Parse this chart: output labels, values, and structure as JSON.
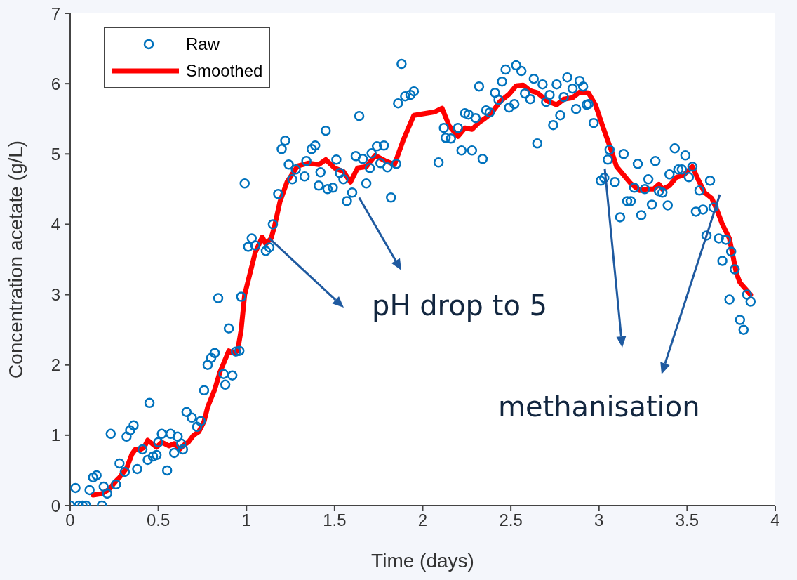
{
  "chart_data": {
    "type": "scatter",
    "xlabel": "Time (days)",
    "ylabel": "Concentration acetate (g/L)",
    "xlim": [
      0,
      4
    ],
    "xticks": [
      0,
      0.5,
      1,
      1.5,
      2,
      2.5,
      3,
      3.5,
      4
    ],
    "ylim": [
      0,
      7
    ],
    "yticks": [
      0,
      1,
      2,
      3,
      4,
      5,
      6,
      7
    ],
    "legend": "top left",
    "grid": false,
    "annotations": [
      {
        "text": "pH drop to 5",
        "x": 1.13,
        "y": 3.8
      },
      "methanisation"
    ],
    "series": [
      {
        "name": "Raw",
        "type": "scatter",
        "marker": "circle",
        "color": "#0072bd",
        "x": [
          0,
          0.03,
          0.05,
          0.07,
          0.09,
          0.11,
          0.13,
          0.15,
          0.18,
          0.19,
          0.21,
          0.23,
          0.26,
          0.28,
          0.31,
          0.32,
          0.34,
          0.36,
          0.38,
          0.41,
          0.44,
          0.45,
          0.47,
          0.49,
          0.5,
          0.52,
          0.55,
          0.57,
          0.59,
          0.61,
          0.63,
          0.64,
          0.66,
          0.69,
          0.72,
          0.74,
          0.76,
          0.78,
          0.8,
          0.82,
          0.84,
          0.87,
          0.88,
          0.9,
          0.92,
          0.94,
          0.96,
          0.97,
          0.99,
          1.01,
          1.03,
          1.05,
          1.11,
          1.13,
          1.15,
          1.18,
          1.2,
          1.22,
          1.24,
          1.26,
          1.28,
          1.33,
          1.34,
          1.37,
          1.39,
          1.41,
          1.42,
          1.45,
          1.46,
          1.49,
          1.51,
          1.53,
          1.55,
          1.57,
          1.6,
          1.62,
          1.64,
          1.66,
          1.68,
          1.7,
          1.71,
          1.74,
          1.76,
          1.78,
          1.8,
          1.82,
          1.85,
          1.86,
          1.88,
          1.9,
          1.93,
          1.95,
          2.09,
          2.12,
          2.13,
          2.16,
          2.2,
          2.22,
          2.24,
          2.26,
          2.28,
          2.3,
          2.32,
          2.34,
          2.36,
          2.38,
          2.41,
          2.43,
          2.45,
          2.47,
          2.49,
          2.52,
          2.53,
          2.56,
          2.58,
          2.61,
          2.63,
          2.65,
          2.68,
          2.7,
          2.72,
          2.74,
          2.76,
          2.78,
          2.8,
          2.82,
          2.85,
          2.87,
          2.89,
          2.91,
          2.93,
          2.94,
          2.97,
          3.01,
          3.03,
          3.05,
          3.06,
          3.09,
          3.12,
          3.14,
          3.16,
          3.18,
          3.2,
          3.22,
          3.24,
          3.26,
          3.28,
          3.3,
          3.32,
          3.34,
          3.36,
          3.39,
          3.4,
          3.43,
          3.45,
          3.47,
          3.49,
          3.51,
          3.53,
          3.55,
          3.57,
          3.59,
          3.61,
          3.63,
          3.65,
          3.68,
          3.7,
          3.72,
          3.74,
          3.75,
          3.77,
          3.8,
          3.82,
          3.84,
          3.86
        ],
        "values": [
          0,
          0.25,
          0,
          0,
          0,
          0.22,
          0.4,
          0.43,
          0,
          0.27,
          0.17,
          1.02,
          0.3,
          0.6,
          0.48,
          0.98,
          1.07,
          1.14,
          0.52,
          0.8,
          0.65,
          1.46,
          0.7,
          0.72,
          0.9,
          1.02,
          0.5,
          1.02,
          0.75,
          0.98,
          0.88,
          0.8,
          1.33,
          1.25,
          1.12,
          1.2,
          1.64,
          2.0,
          2.1,
          2.17,
          2.95,
          1.87,
          1.72,
          2.52,
          1.85,
          2.19,
          2.2,
          2.97,
          4.58,
          3.68,
          3.8,
          3.7,
          3.62,
          3.67,
          4.0,
          4.43,
          5.07,
          5.19,
          4.85,
          4.64,
          4.78,
          4.68,
          4.9,
          5.07,
          5.12,
          4.55,
          4.74,
          5.33,
          4.5,
          4.52,
          4.92,
          4.73,
          4.64,
          4.33,
          4.45,
          4.97,
          5.54,
          4.93,
          4.58,
          4.8,
          5.01,
          5.11,
          4.87,
          5.12,
          4.81,
          4.38,
          4.86,
          5.72,
          6.28,
          5.82,
          5.84,
          5.89,
          4.88,
          5.37,
          5.23,
          5.22,
          5.37,
          5.05,
          5.58,
          5.56,
          5.05,
          5.51,
          5.96,
          4.93,
          5.62,
          5.59,
          5.87,
          5.77,
          6.03,
          6.2,
          5.66,
          5.71,
          6.26,
          6.18,
          5.86,
          5.78,
          6.07,
          5.15,
          5.99,
          5.74,
          5.84,
          5.41,
          5.99,
          5.55,
          5.81,
          6.09,
          5.93,
          5.64,
          6.04,
          5.96,
          5.7,
          5.71,
          5.44,
          4.62,
          4.66,
          4.92,
          5.06,
          4.6,
          4.1,
          5.0,
          4.33,
          4.33,
          4.52,
          4.86,
          4.13,
          4.5,
          4.64,
          4.28,
          4.9,
          4.47,
          4.45,
          4.27,
          4.71,
          5.08,
          4.78,
          4.78,
          4.98,
          4.67,
          4.82,
          4.18,
          4.48,
          4.21,
          3.84,
          4.62,
          4.24,
          3.8,
          3.48,
          3.78,
          2.93,
          3.61,
          3.36,
          2.64,
          2.5,
          3.0,
          2.9
        ]
      },
      {
        "name": "Smoothed",
        "type": "line",
        "marker": "none",
        "line_style": "solid",
        "color": "#ff0000",
        "x": [
          0.13,
          0.18,
          0.22,
          0.26,
          0.28,
          0.32,
          0.35,
          0.37,
          0.4,
          0.42,
          0.44,
          0.49,
          0.52,
          0.56,
          0.59,
          0.62,
          0.65,
          0.67,
          0.7,
          0.73,
          0.76,
          0.78,
          0.82,
          0.85,
          0.88,
          0.9,
          0.93,
          0.95,
          0.97,
          0.99,
          1.02,
          1.05,
          1.09,
          1.11,
          1.14,
          1.16,
          1.19,
          1.23,
          1.29,
          1.35,
          1.41,
          1.45,
          1.5,
          1.55,
          1.59,
          1.63,
          1.68,
          1.73,
          1.79,
          1.84,
          1.89,
          1.95,
          2.07,
          2.11,
          2.15,
          2.2,
          2.24,
          2.28,
          2.32,
          2.35,
          2.39,
          2.44,
          2.49,
          2.53,
          2.57,
          2.61,
          2.65,
          2.71,
          2.76,
          2.8,
          2.85,
          2.89,
          2.94,
          2.98,
          3.02,
          3.07,
          3.1,
          3.14,
          3.18,
          3.23,
          3.27,
          3.31,
          3.34,
          3.36,
          3.4,
          3.44,
          3.48,
          3.53,
          3.56,
          3.6,
          3.64,
          3.67,
          3.7,
          3.74,
          3.76,
          3.78,
          3.8,
          3.86
        ],
        "values": [
          0.15,
          0.17,
          0.23,
          0.35,
          0.4,
          0.53,
          0.73,
          0.8,
          0.8,
          0.83,
          0.93,
          0.83,
          0.9,
          0.85,
          0.88,
          0.8,
          0.87,
          0.9,
          1.0,
          1.05,
          1.2,
          1.4,
          1.65,
          1.9,
          2.08,
          2.2,
          2.17,
          2.2,
          2.5,
          3.0,
          3.3,
          3.6,
          3.82,
          3.72,
          3.8,
          3.98,
          4.32,
          4.6,
          4.83,
          4.87,
          4.85,
          4.92,
          4.8,
          4.75,
          4.6,
          4.8,
          4.82,
          4.98,
          4.9,
          4.85,
          5.2,
          5.55,
          5.6,
          5.65,
          5.4,
          5.25,
          5.37,
          5.35,
          5.45,
          5.5,
          5.58,
          5.75,
          5.85,
          5.97,
          5.98,
          5.9,
          5.87,
          5.75,
          5.7,
          5.78,
          5.8,
          5.88,
          5.87,
          5.7,
          5.4,
          5.05,
          4.82,
          4.7,
          4.58,
          4.48,
          4.5,
          4.5,
          4.57,
          4.5,
          4.55,
          4.67,
          4.7,
          4.82,
          4.65,
          4.45,
          4.37,
          4.2,
          4.0,
          3.8,
          3.55,
          3.3,
          3.17,
          3.0
        ]
      }
    ]
  }
}
